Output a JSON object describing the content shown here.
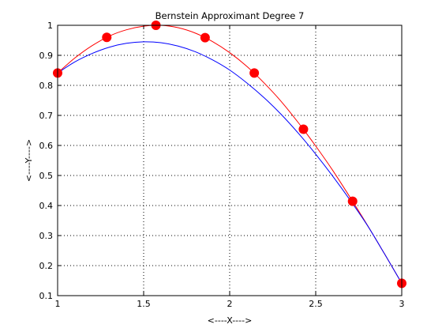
{
  "chart_data": {
    "type": "line",
    "title": "Bernstein Approximant Degree 7",
    "xlabel": "<----X---->",
    "ylabel": "<----Y---->",
    "xlim": [
      1,
      3
    ],
    "ylim": [
      0.1,
      1
    ],
    "xticks": [
      1,
      1.5,
      2,
      2.5,
      3
    ],
    "xtick_labels": [
      "1",
      "1.5",
      "2",
      "2.5",
      "3"
    ],
    "yticks": [
      0.1,
      0.2,
      0.3,
      0.4,
      0.5,
      0.6,
      0.7,
      0.8,
      0.9,
      1
    ],
    "ytick_labels": [
      "0.1",
      "0.2",
      "0.3",
      "0.4",
      "0.5",
      "0.6",
      "0.7",
      "0.8",
      "0.9",
      "1"
    ],
    "grid": true,
    "series": [
      {
        "kind": "line",
        "color": "#ff0000",
        "x": [
          1.0,
          1.1,
          1.2,
          1.3,
          1.4,
          1.5,
          1.6,
          1.7,
          1.8,
          1.9,
          2.0,
          2.1,
          2.2,
          2.3,
          2.4,
          2.5,
          2.6,
          2.7,
          2.8,
          2.9,
          3.0
        ],
        "y": [
          0.841,
          0.891,
          0.932,
          0.964,
          0.985,
          0.997,
          1.0,
          0.992,
          0.974,
          0.946,
          0.909,
          0.863,
          0.808,
          0.746,
          0.675,
          0.598,
          0.516,
          0.427,
          0.335,
          0.239,
          0.141
        ]
      },
      {
        "kind": "line",
        "color": "#0000ff",
        "x": [
          1.0,
          1.1,
          1.2,
          1.3,
          1.4,
          1.5,
          1.6,
          1.7,
          1.8,
          1.9,
          2.0,
          2.1,
          2.2,
          2.3,
          2.4,
          2.5,
          2.6,
          2.7,
          2.8,
          2.9,
          3.0
        ],
        "y": [
          0.841,
          0.878,
          0.906,
          0.927,
          0.94,
          0.945,
          0.942,
          0.931,
          0.912,
          0.885,
          0.851,
          0.808,
          0.759,
          0.703,
          0.64,
          0.571,
          0.497,
          0.418,
          0.334,
          0.239,
          0.141
        ]
      },
      {
        "kind": "markers",
        "color": "#ff0000",
        "x": [
          1.0,
          1.2857,
          1.5714,
          1.8571,
          2.1429,
          2.4286,
          2.7143,
          3.0
        ],
        "y": [
          0.841,
          0.96,
          1.0,
          0.959,
          0.841,
          0.654,
          0.414,
          0.141
        ]
      }
    ]
  }
}
